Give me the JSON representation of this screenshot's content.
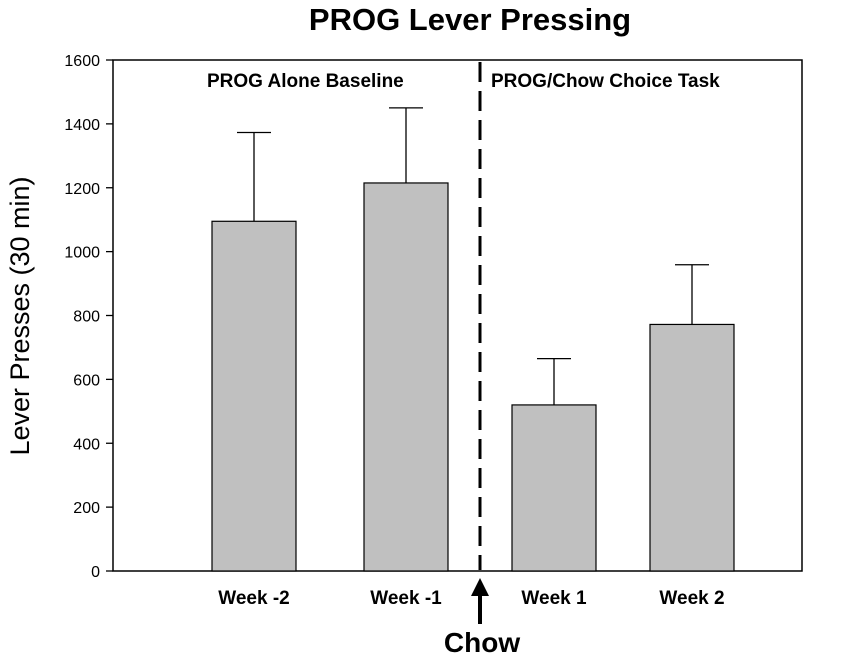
{
  "chart_data": {
    "type": "bar",
    "title": "PROG Lever Pressing",
    "xlabel": "",
    "ylabel": "Lever Presses (30 min)",
    "ylim": [
      0,
      1600
    ],
    "yticks": [
      0,
      200,
      400,
      600,
      800,
      1000,
      1200,
      1400,
      1600
    ],
    "categories": [
      "Week -2",
      "Week -1",
      "Week 1",
      "Week 2"
    ],
    "values": [
      1095,
      1215,
      520,
      772
    ],
    "errors": [
      278,
      235,
      145,
      187
    ],
    "bar_color": "#c0c0c0",
    "annotations": {
      "left_region": "PROG Alone Baseline",
      "right_region": "PROG/Chow Choice Task",
      "marker": "Chow"
    }
  }
}
